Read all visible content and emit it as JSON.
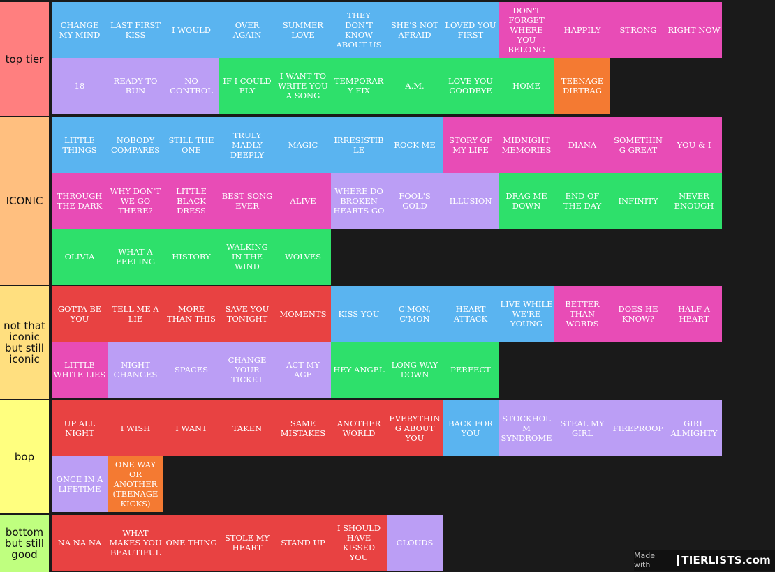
{
  "tiers": [
    {
      "label": "top tier",
      "color": "#ff7f7f",
      "items": [
        {
          "text": "CHANGE MY MIND",
          "color": "blue"
        },
        {
          "text": "LAST FIRST KISS",
          "color": "blue"
        },
        {
          "text": "I WOULD",
          "color": "blue"
        },
        {
          "text": "OVER AGAIN",
          "color": "blue"
        },
        {
          "text": "SUMMER LOVE",
          "color": "blue"
        },
        {
          "text": "THEY DON'T KNOW ABOUT US",
          "color": "blue"
        },
        {
          "text": "SHE'S NOT AFRAID",
          "color": "blue"
        },
        {
          "text": "LOVED YOU FIRST",
          "color": "blue"
        },
        {
          "text": "DON'T FORGET WHERE YOU BELONG",
          "color": "pink"
        },
        {
          "text": "HAPPILY",
          "color": "pink"
        },
        {
          "text": "STRONG",
          "color": "pink"
        },
        {
          "text": "RIGHT NOW",
          "color": "pink"
        },
        {
          "text": "18",
          "color": "purple"
        },
        {
          "text": "READY TO RUN",
          "color": "purple"
        },
        {
          "text": "NO CONTROL",
          "color": "purple"
        },
        {
          "text": "IF I COULD FLY",
          "color": "green"
        },
        {
          "text": "I WANT TO WRITE YOU A SONG",
          "color": "green"
        },
        {
          "text": "TEMPORARY FIX",
          "color": "green"
        },
        {
          "text": "A.M.",
          "color": "green"
        },
        {
          "text": "LOVE YOU GOODBYE",
          "color": "green"
        },
        {
          "text": "HOME",
          "color": "green"
        },
        {
          "text": "TEENAGE DIRTBAG",
          "color": "orange"
        }
      ]
    },
    {
      "label": "ICONIC",
      "color": "#ffbf7f",
      "items": [
        {
          "text": "LITTLE THINGS",
          "color": "blue"
        },
        {
          "text": "NOBODY COMPARES",
          "color": "blue"
        },
        {
          "text": "STILL THE ONE",
          "color": "blue"
        },
        {
          "text": "TRULY MADLY DEEPLY",
          "color": "blue"
        },
        {
          "text": "MAGIC",
          "color": "blue"
        },
        {
          "text": "IRRESISTIBLE",
          "color": "blue"
        },
        {
          "text": "ROCK ME",
          "color": "blue"
        },
        {
          "text": "STORY OF MY LIFE",
          "color": "pink"
        },
        {
          "text": "MIDNIGHT MEMORIES",
          "color": "pink"
        },
        {
          "text": "DIANA",
          "color": "pink"
        },
        {
          "text": "SOMETHING GREAT",
          "color": "pink"
        },
        {
          "text": "YOU & I",
          "color": "pink"
        },
        {
          "text": "THROUGH THE DARK",
          "color": "pink"
        },
        {
          "text": "WHY DON'T WE GO THERE?",
          "color": "pink"
        },
        {
          "text": "LITTLE BLACK DRESS",
          "color": "pink"
        },
        {
          "text": "BEST SONG EVER",
          "color": "pink"
        },
        {
          "text": "ALIVE",
          "color": "pink"
        },
        {
          "text": "WHERE DO BROKEN HEARTS GO",
          "color": "purple"
        },
        {
          "text": "FOOL'S GOLD",
          "color": "purple"
        },
        {
          "text": "ILLUSION",
          "color": "purple"
        },
        {
          "text": "DRAG ME DOWN",
          "color": "green"
        },
        {
          "text": "END OF THE DAY",
          "color": "green"
        },
        {
          "text": "INFINITY",
          "color": "green"
        },
        {
          "text": "NEVER ENOUGH",
          "color": "green"
        },
        {
          "text": "OLIVIA",
          "color": "green"
        },
        {
          "text": "WHAT A FEELING",
          "color": "green"
        },
        {
          "text": "HISTORY",
          "color": "green"
        },
        {
          "text": "WALKING IN THE WIND",
          "color": "green"
        },
        {
          "text": "WOLVES",
          "color": "green"
        }
      ]
    },
    {
      "label": "not that iconic but still iconic",
      "color": "#ffdf7f",
      "items": [
        {
          "text": "GOTTA BE YOU",
          "color": "red"
        },
        {
          "text": "TELL ME A LIE",
          "color": "red"
        },
        {
          "text": "MORE THAN THIS",
          "color": "red"
        },
        {
          "text": "SAVE YOU TONIGHT",
          "color": "red"
        },
        {
          "text": "MOMENTS",
          "color": "red"
        },
        {
          "text": "KISS YOU",
          "color": "blue"
        },
        {
          "text": "C'MON, C'MON",
          "color": "blue"
        },
        {
          "text": "HEART ATTACK",
          "color": "blue"
        },
        {
          "text": "LIVE WHILE WE'RE YOUNG",
          "color": "blue"
        },
        {
          "text": "BETTER THAN WORDS",
          "color": "pink"
        },
        {
          "text": "DOES HE KNOW?",
          "color": "pink"
        },
        {
          "text": "HALF A HEART",
          "color": "pink"
        },
        {
          "text": "LITTLE WHITE LIES",
          "color": "pink"
        },
        {
          "text": "NIGHT CHANGES",
          "color": "purple"
        },
        {
          "text": "SPACES",
          "color": "purple"
        },
        {
          "text": "CHANGE YOUR TICKET",
          "color": "purple"
        },
        {
          "text": "ACT MY AGE",
          "color": "purple"
        },
        {
          "text": "HEY ANGEL",
          "color": "green"
        },
        {
          "text": "LONG WAY DOWN",
          "color": "green"
        },
        {
          "text": "PERFECT",
          "color": "green"
        }
      ]
    },
    {
      "label": "bop",
      "color": "#ffff7f",
      "items": [
        {
          "text": "UP ALL NIGHT",
          "color": "red"
        },
        {
          "text": "I WISH",
          "color": "red"
        },
        {
          "text": "I WANT",
          "color": "red"
        },
        {
          "text": "TAKEN",
          "color": "red"
        },
        {
          "text": "SAME MISTAKES",
          "color": "red"
        },
        {
          "text": "ANOTHER WORLD",
          "color": "red"
        },
        {
          "text": "EVERYTHING ABOUT YOU",
          "color": "red"
        },
        {
          "text": "BACK FOR YOU",
          "color": "blue"
        },
        {
          "text": "STOCKHOLM SYNDROME",
          "color": "purple"
        },
        {
          "text": "STEAL MY GIRL",
          "color": "purple"
        },
        {
          "text": "FIREPROOF",
          "color": "purple"
        },
        {
          "text": "GIRL ALMIGHTY",
          "color": "purple"
        },
        {
          "text": "ONCE IN A LIFETIME",
          "color": "purple"
        },
        {
          "text": "ONE WAY OR ANOTHER (TEENAGE KICKS)",
          "color": "orange"
        }
      ]
    },
    {
      "label": "bottom but still good",
      "color": "#bfff7f",
      "items": [
        {
          "text": "NA NA NA",
          "color": "red"
        },
        {
          "text": "WHAT MAKES YOU BEAUTIFUL",
          "color": "red"
        },
        {
          "text": "ONE THING",
          "color": "red"
        },
        {
          "text": "STOLE MY HEART",
          "color": "red"
        },
        {
          "text": "STAND UP",
          "color": "red"
        },
        {
          "text": "I SHOULD HAVE KISSED YOU",
          "color": "red"
        },
        {
          "text": "CLOUDS",
          "color": "purple"
        }
      ]
    }
  ],
  "watermark": {
    "made_with": "Made with",
    "brand": "TIERLISTS.com"
  }
}
